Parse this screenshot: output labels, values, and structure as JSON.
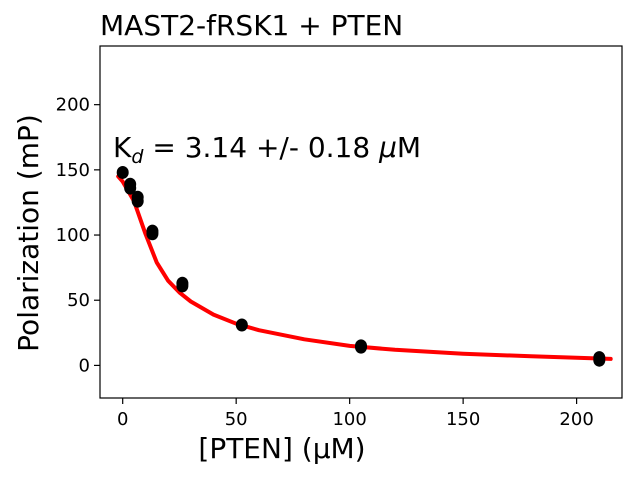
{
  "chart_data": {
    "type": "scatter",
    "title": "MAST2-fRSK1 + PTEN",
    "xlabel": "[PTEN] (μM)",
    "ylabel": "Polarization (mP)",
    "xlim": [
      -10,
      220
    ],
    "ylim": [
      -25,
      245
    ],
    "x_ticks": [
      0,
      50,
      100,
      150,
      200
    ],
    "y_ticks": [
      0,
      50,
      100,
      150,
      200
    ],
    "grid": false,
    "annotation": {
      "k": "K",
      "sub": "d",
      "rest": " = 3.14 +/- 0.18 ",
      "mu": "μ",
      "unit": "M"
    },
    "series": [
      {
        "name": "data",
        "color": "#000000",
        "x": [
          0,
          3.3,
          3.3,
          6.6,
          6.6,
          13.1,
          13.1,
          26.3,
          26.3,
          52.5,
          105,
          105,
          210,
          210
        ],
        "y": [
          148,
          139,
          136,
          129,
          126,
          103,
          101,
          63,
          61,
          31,
          15,
          14,
          6,
          4
        ]
      },
      {
        "name": "fit",
        "color": "#ff0000",
        "x": [
          -2,
          0,
          5,
          10,
          15,
          20,
          25,
          30,
          40,
          50,
          60,
          80,
          100,
          120,
          150,
          180,
          215
        ],
        "y": [
          145,
          141,
          126,
          101,
          79,
          65,
          56,
          49,
          39,
          32,
          27,
          20,
          15,
          12,
          9,
          7,
          5
        ]
      }
    ]
  }
}
